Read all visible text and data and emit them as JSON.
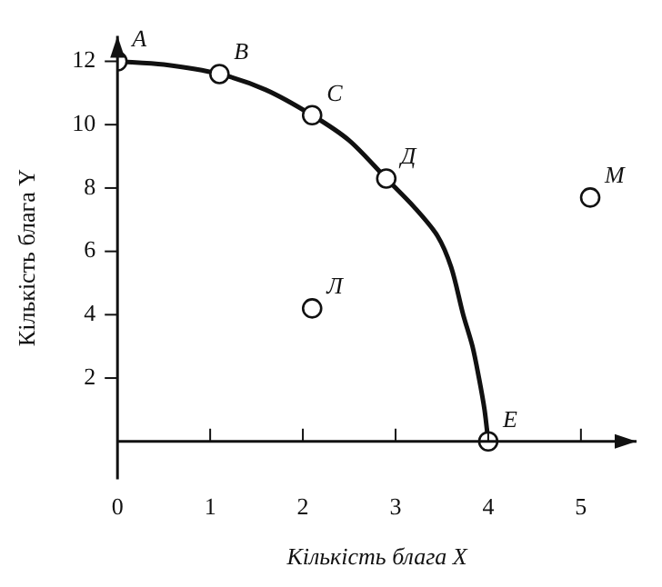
{
  "chart_data": {
    "type": "line",
    "xlabel": "Кількість блага X",
    "ylabel": "Кількість блага Y",
    "xlim": [
      0,
      5.6
    ],
    "ylim": [
      -1.2,
      12.8
    ],
    "xticks": [
      0,
      1,
      2,
      3,
      4,
      5
    ],
    "yticks": [
      2,
      4,
      6,
      8,
      10,
      12
    ],
    "grid": false,
    "legend": false,
    "series": [
      {
        "type": "line",
        "marker": "none",
        "color": "#111111",
        "x": [
          0,
          0.5,
          1.1,
          1.6,
          2.1,
          2.5,
          2.9,
          3.2,
          3.45,
          3.6,
          3.73,
          3.83,
          3.9,
          3.96,
          4
        ],
        "values": [
          12,
          11.9,
          11.6,
          11.1,
          10.3,
          9.5,
          8.3,
          7.4,
          6.5,
          5.5,
          4,
          3,
          2,
          1,
          0
        ]
      },
      {
        "type": "scatter",
        "marker": "circle",
        "color": "#111111",
        "x": [
          0,
          1.1,
          2.1,
          2.9,
          4,
          2.1,
          5.1
        ],
        "values": [
          12,
          11.6,
          10.3,
          8.3,
          0,
          4.2,
          7.7
        ]
      }
    ],
    "annotations": [
      {
        "text": "A",
        "x": 0,
        "y": 12
      },
      {
        "text": "B",
        "x": 1.1,
        "y": 11.6
      },
      {
        "text": "C",
        "x": 2.1,
        "y": 10.3
      },
      {
        "text": "Д",
        "x": 2.9,
        "y": 8.3
      },
      {
        "text": "E",
        "x": 4,
        "y": 0
      },
      {
        "text": "Л",
        "x": 2.1,
        "y": 4.2
      },
      {
        "text": "M",
        "x": 5.1,
        "y": 7.7
      }
    ]
  }
}
